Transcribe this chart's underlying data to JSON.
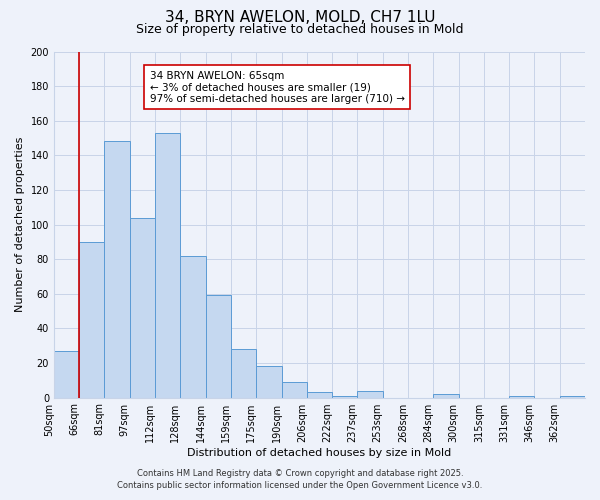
{
  "title": "34, BRYN AWELON, MOLD, CH7 1LU",
  "subtitle": "Size of property relative to detached houses in Mold",
  "xlabel": "Distribution of detached houses by size in Mold",
  "ylabel": "Number of detached properties",
  "bin_labels": [
    "50sqm",
    "66sqm",
    "81sqm",
    "97sqm",
    "112sqm",
    "128sqm",
    "144sqm",
    "159sqm",
    "175sqm",
    "190sqm",
    "206sqm",
    "222sqm",
    "237sqm",
    "253sqm",
    "268sqm",
    "284sqm",
    "300sqm",
    "315sqm",
    "331sqm",
    "346sqm",
    "362sqm"
  ],
  "bar_heights": [
    27,
    90,
    148,
    104,
    153,
    82,
    59,
    28,
    18,
    9,
    3,
    1,
    4,
    0,
    0,
    2,
    0,
    0,
    1,
    0,
    1
  ],
  "bar_color": "#c5d8f0",
  "bar_edge_color": "#5b9bd5",
  "ylim": [
    0,
    200
  ],
  "yticks": [
    0,
    20,
    40,
    60,
    80,
    100,
    120,
    140,
    160,
    180,
    200
  ],
  "vline_x": 1,
  "vline_color": "#cc0000",
  "annotation_title": "34 BRYN AWELON: 65sqm",
  "annotation_line2": "← 3% of detached houses are smaller (19)",
  "annotation_line3": "97% of semi-detached houses are larger (710) →",
  "footer1": "Contains HM Land Registry data © Crown copyright and database right 2025.",
  "footer2": "Contains public sector information licensed under the Open Government Licence v3.0.",
  "background_color": "#eef2fa",
  "grid_color": "#c8d4e8",
  "title_fontsize": 11,
  "subtitle_fontsize": 9,
  "label_fontsize": 8,
  "tick_fontsize": 7,
  "annotation_fontsize": 7.5,
  "footer_fontsize": 6
}
